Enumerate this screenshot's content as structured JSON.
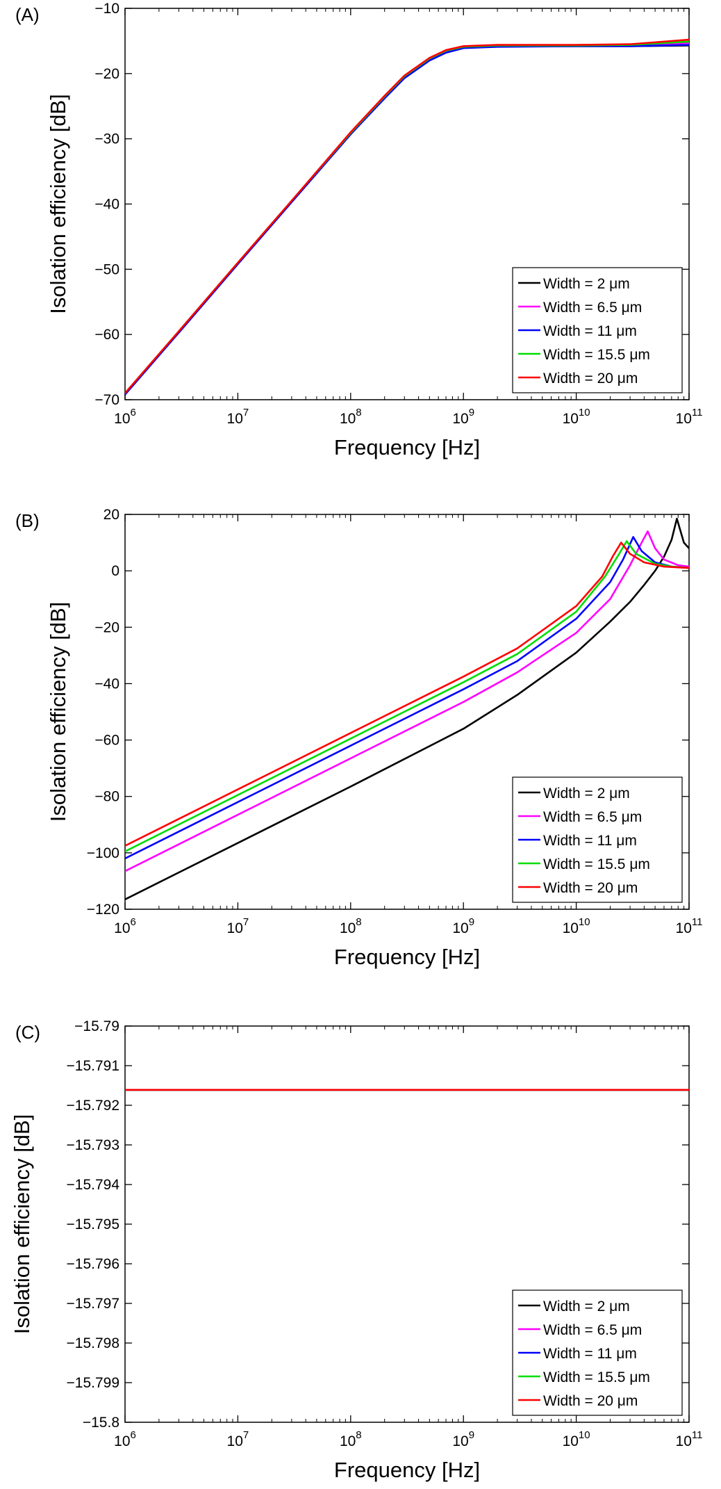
{
  "chart_data": [
    {
      "panel": "(A)",
      "type": "line",
      "xscale": "log",
      "xlabel": "Frequency [Hz]",
      "ylabel": "Isolation efficiency [dB]",
      "xlim": [
        1000000,
        100000000000
      ],
      "ylim": [
        -70,
        -10
      ],
      "yticks": [
        -70,
        -60,
        -50,
        -40,
        -30,
        -20,
        -10
      ],
      "ytick_labels": [
        "−70",
        "−60",
        "−50",
        "−40",
        "−30",
        "−20",
        "−10"
      ],
      "xticks": [
        1000000,
        10000000,
        100000000,
        1000000000,
        10000000000,
        100000000000
      ],
      "xtick_bases": [
        "10",
        "10",
        "10",
        "10",
        "10",
        "10"
      ],
      "xtick_exponents": [
        "6",
        "7",
        "8",
        "9",
        "10",
        "11"
      ],
      "legend_position": "bottom-right",
      "series": [
        {
          "name": "Width = 2 μm",
          "color": "#000000",
          "x": [
            1000000.0,
            3000000.0,
            10000000.0,
            30000000.0,
            100000000.0,
            200000000.0,
            300000000.0,
            500000000.0,
            700000000.0,
            1000000000.0,
            2000000000.0,
            10000000000.0,
            30000000000.0,
            100000000000.0
          ],
          "y": [
            -69.2,
            -59.7,
            -49.2,
            -39.7,
            -29.3,
            -23.7,
            -20.6,
            -17.9,
            -16.7,
            -16.0,
            -15.8,
            -15.8,
            -15.8,
            -15.7
          ]
        },
        {
          "name": "Width = 6.5 μm",
          "color": "#ff00ff",
          "x": [
            1000000.0,
            3000000.0,
            10000000.0,
            30000000.0,
            100000000.0,
            200000000.0,
            300000000.0,
            500000000.0,
            700000000.0,
            1000000000.0,
            2000000000.0,
            10000000000.0,
            30000000000.0,
            100000000000.0
          ],
          "y": [
            -69.1,
            -59.6,
            -49.1,
            -39.6,
            -29.2,
            -23.6,
            -20.5,
            -17.8,
            -16.6,
            -16.0,
            -15.8,
            -15.8,
            -15.7,
            -15.3
          ]
        },
        {
          "name": "Width = 11 μm",
          "color": "#0000ff",
          "x": [
            1000000.0,
            3000000.0,
            10000000.0,
            30000000.0,
            100000000.0,
            200000000.0,
            300000000.0,
            500000000.0,
            700000000.0,
            1000000000.0,
            2000000000.0,
            10000000000.0,
            30000000000.0,
            100000000000.0
          ],
          "y": [
            -69.2,
            -59.7,
            -49.2,
            -39.7,
            -29.3,
            -23.8,
            -20.7,
            -18.0,
            -16.8,
            -16.1,
            -15.9,
            -15.8,
            -15.8,
            -15.6
          ]
        },
        {
          "name": "Width = 15.5 μm",
          "color": "#00dd00",
          "x": [
            1000000.0,
            3000000.0,
            10000000.0,
            30000000.0,
            100000000.0,
            200000000.0,
            300000000.0,
            500000000.0,
            700000000.0,
            1000000000.0,
            2000000000.0,
            10000000000.0,
            30000000000.0,
            100000000000.0
          ],
          "y": [
            -69.0,
            -59.5,
            -49.0,
            -39.5,
            -29.1,
            -23.5,
            -20.4,
            -17.7,
            -16.5,
            -15.9,
            -15.7,
            -15.7,
            -15.6,
            -15.1
          ]
        },
        {
          "name": "Width = 20 μm",
          "color": "#ff0000",
          "x": [
            1000000.0,
            3000000.0,
            10000000.0,
            30000000.0,
            100000000.0,
            200000000.0,
            300000000.0,
            500000000.0,
            700000000.0,
            1000000000.0,
            2000000000.0,
            10000000000.0,
            30000000000.0,
            100000000000.0
          ],
          "y": [
            -69.0,
            -59.5,
            -49.0,
            -39.5,
            -29.0,
            -23.4,
            -20.3,
            -17.6,
            -16.4,
            -15.8,
            -15.6,
            -15.6,
            -15.5,
            -14.8
          ]
        }
      ]
    },
    {
      "panel": "(B)",
      "type": "line",
      "xscale": "log",
      "xlabel": "Frequency [Hz]",
      "ylabel": "Isolation efficiency [dB]",
      "xlim": [
        1000000,
        100000000000
      ],
      "ylim": [
        -120,
        20
      ],
      "yticks": [
        -120,
        -100,
        -80,
        -60,
        -40,
        -20,
        0,
        20
      ],
      "ytick_labels": [
        "−120",
        "−100",
        "−80",
        "−60",
        "−40",
        "−20",
        "0",
        "20"
      ],
      "xticks": [
        1000000,
        10000000,
        100000000,
        1000000000,
        10000000000,
        100000000000
      ],
      "xtick_bases": [
        "10",
        "10",
        "10",
        "10",
        "10",
        "10"
      ],
      "xtick_exponents": [
        "6",
        "7",
        "8",
        "9",
        "10",
        "11"
      ],
      "legend_position": "bottom-right",
      "series": [
        {
          "name": "Width = 2 μm",
          "color": "#000000",
          "x": [
            1000000.0,
            10000000.0,
            100000000.0,
            1000000000.0,
            3000000000.0,
            10000000000.0,
            20000000000.0,
            30000000000.0,
            40000000000.0,
            50000000000.0,
            60000000000.0,
            70000000000.0,
            78000000000.0,
            90000000000.0,
            100000000000.0
          ],
          "y": [
            -116.5,
            -96.5,
            -76.5,
            -56.0,
            -44.0,
            -29.0,
            -18.0,
            -11.0,
            -5.0,
            0.0,
            5.0,
            11.0,
            18.5,
            10.0,
            8.0
          ]
        },
        {
          "name": "Width = 6.5 μm",
          "color": "#ff00ff",
          "x": [
            1000000.0,
            10000000.0,
            100000000.0,
            1000000000.0,
            3000000000.0,
            10000000000.0,
            20000000000.0,
            30000000000.0,
            38000000000.0,
            43000000000.0,
            50000000000.0,
            60000000000.0,
            80000000000.0,
            100000000000.0
          ],
          "y": [
            -106.5,
            -86.5,
            -66.5,
            -46.5,
            -36.0,
            -22.0,
            -10.0,
            2.0,
            10.0,
            14.0,
            8.0,
            4.0,
            2.0,
            1.5
          ]
        },
        {
          "name": "Width = 11 μm",
          "color": "#0000ff",
          "x": [
            1000000.0,
            10000000.0,
            100000000.0,
            1000000000.0,
            3000000000.0,
            10000000000.0,
            20000000000.0,
            26000000000.0,
            32000000000.0,
            38000000000.0,
            50000000000.0,
            70000000000.0,
            100000000000.0
          ],
          "y": [
            -102.0,
            -82.0,
            -62.0,
            -42.0,
            -32.0,
            -17.0,
            -4.0,
            4.0,
            12.0,
            7.0,
            3.0,
            1.5,
            1.0
          ]
        },
        {
          "name": "Width = 15.5 μm",
          "color": "#00dd00",
          "x": [
            1000000.0,
            10000000.0,
            100000000.0,
            1000000000.0,
            3000000000.0,
            10000000000.0,
            18000000000.0,
            24000000000.0,
            28000000000.0,
            34000000000.0,
            50000000000.0,
            70000000000.0,
            100000000000.0
          ],
          "y": [
            -99.5,
            -79.5,
            -59.5,
            -39.5,
            -29.5,
            -14.5,
            -2.0,
            6.0,
            10.5,
            6.0,
            2.5,
            1.5,
            1.0
          ]
        },
        {
          "name": "Width = 20 μm",
          "color": "#ff0000",
          "x": [
            1000000.0,
            10000000.0,
            100000000.0,
            1000000000.0,
            3000000000.0,
            10000000000.0,
            17000000000.0,
            21000000000.0,
            25000000000.0,
            30000000000.0,
            40000000000.0,
            60000000000.0,
            100000000000.0
          ],
          "y": [
            -97.5,
            -77.5,
            -57.5,
            -37.5,
            -27.5,
            -12.5,
            -2.0,
            5.0,
            10.0,
            6.0,
            3.0,
            1.5,
            1.0
          ]
        }
      ]
    },
    {
      "panel": "(C)",
      "type": "line",
      "xscale": "log",
      "xlabel": "Frequency [Hz]",
      "ylabel": "Isolation efficiency [dB]",
      "xlim": [
        1000000,
        100000000000
      ],
      "ylim": [
        -15.8,
        -15.79
      ],
      "yticks": [
        -15.8,
        -15.799,
        -15.798,
        -15.797,
        -15.796,
        -15.795,
        -15.794,
        -15.793,
        -15.792,
        -15.791,
        -15.79
      ],
      "ytick_labels": [
        "−15.8",
        "−15.799",
        "−15.798",
        "−15.797",
        "−15.796",
        "−15.795",
        "−15.794",
        "−15.793",
        "−15.792",
        "−15.791",
        "−15.79"
      ],
      "xticks": [
        1000000,
        10000000,
        100000000,
        1000000000,
        10000000000,
        100000000000
      ],
      "xtick_bases": [
        "10",
        "10",
        "10",
        "10",
        "10",
        "10"
      ],
      "xtick_exponents": [
        "6",
        "7",
        "8",
        "9",
        "10",
        "11"
      ],
      "legend_position": "bottom-right",
      "series": [
        {
          "name": "Width = 2 μm",
          "color": "#000000",
          "x": [
            1000000.0,
            100000000000.0
          ],
          "y": [
            -15.79161,
            -15.79161
          ]
        },
        {
          "name": "Width = 6.5 μm",
          "color": "#ff00ff",
          "x": [
            1000000.0,
            100000000000.0
          ],
          "y": [
            -15.79161,
            -15.79161
          ]
        },
        {
          "name": "Width = 11 μm",
          "color": "#0000ff",
          "x": [
            1000000.0,
            100000000000.0
          ],
          "y": [
            -15.79161,
            -15.79161
          ]
        },
        {
          "name": "Width = 15.5 μm",
          "color": "#00dd00",
          "x": [
            1000000.0,
            100000000000.0
          ],
          "y": [
            -15.79161,
            -15.79161
          ]
        },
        {
          "name": "Width = 20 μm",
          "color": "#ff0000",
          "x": [
            1000000.0,
            100000000000.0
          ],
          "y": [
            -15.79161,
            -15.79161
          ]
        }
      ]
    }
  ]
}
